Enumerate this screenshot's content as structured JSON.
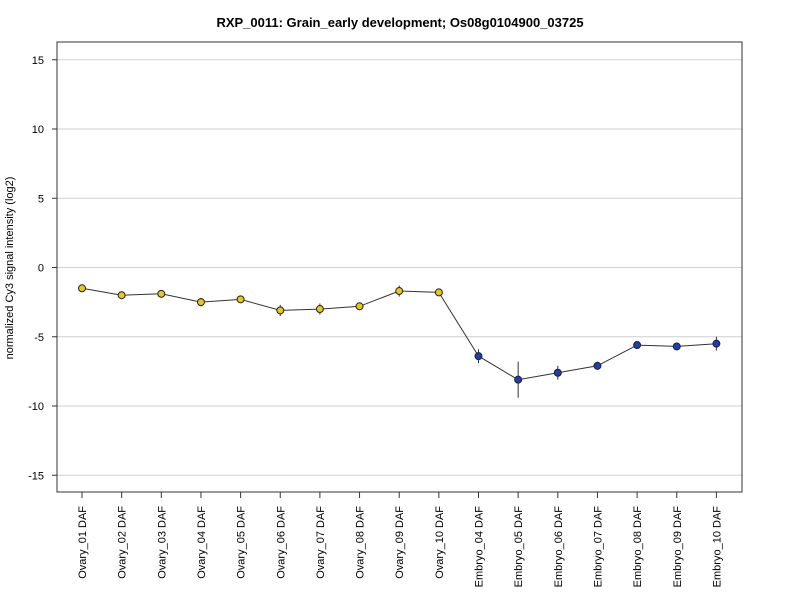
{
  "chart_data": {
    "type": "line",
    "title": "RXP_0011: Grain_early development; Os08g0104900_03725",
    "xlabel": "",
    "ylabel": "normalized Cy3 signal intensity (log2)",
    "ylim": [
      -16,
      16
    ],
    "yticks": [
      -15,
      -10,
      -5,
      0,
      5,
      10,
      15
    ],
    "grid": true,
    "categories": [
      "Ovary_01 DAF",
      "Ovary_02 DAF",
      "Ovary_03 DAF",
      "Ovary_04 DAF",
      "Ovary_05 DAF",
      "Ovary_06 DAF",
      "Ovary_07 DAF",
      "Ovary_08 DAF",
      "Ovary_09 DAF",
      "Ovary_10 DAF",
      "Embryo_04 DAF",
      "Embryo_05 DAF",
      "Embryo_06 DAF",
      "Embryo_07 DAF",
      "Embryo_08 DAF",
      "Embryo_09 DAF",
      "Embryo_10 DAF"
    ],
    "values": [
      -1.5,
      -2.0,
      -1.9,
      -2.5,
      -2.3,
      -3.1,
      -3.0,
      -2.8,
      -1.7,
      -1.8,
      -6.4,
      -8.1,
      -7.6,
      -7.1,
      -5.6,
      -5.7,
      -5.5
    ],
    "errors": [
      0.2,
      0.2,
      0.2,
      0.3,
      0.2,
      0.4,
      0.4,
      0.2,
      0.4,
      0.2,
      0.5,
      1.3,
      0.5,
      0.3,
      0.1,
      0.1,
      0.5
    ],
    "point_colors": [
      "#e8c81a",
      "#e8c81a",
      "#e8c81a",
      "#e8c81a",
      "#e8c81a",
      "#e8c81a",
      "#e8c81a",
      "#e8c81a",
      "#e8c81a",
      "#e8c81a",
      "#1a3fb0",
      "#1a3fb0",
      "#1a3fb0",
      "#1a3fb0",
      "#1a3fb0",
      "#1a3fb0",
      "#1a3fb0"
    ],
    "colors": {
      "ovary": "#e8c81a",
      "embryo": "#1a3fb0"
    }
  }
}
